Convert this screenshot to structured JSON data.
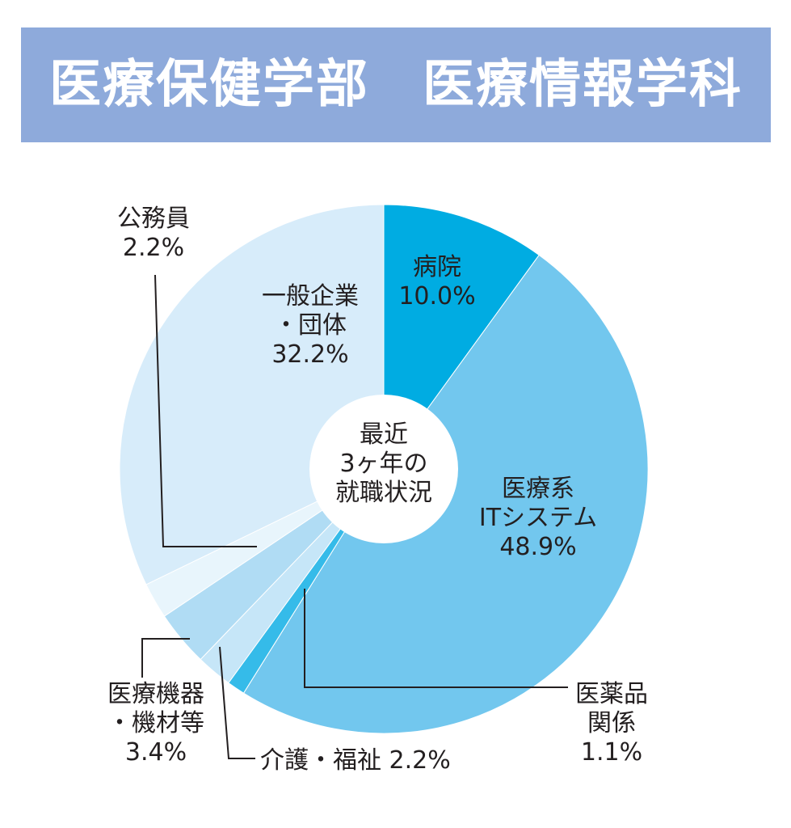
{
  "title": "医療保健学部　医療情報学科",
  "colors": {
    "banner": "#8eaadb",
    "hospital": "#00ace2",
    "medical_it": "#72c7ee",
    "pharma": "#35bbe9",
    "welfare": "#c6e6f8",
    "equipment": "#b0dcf4",
    "public": "#e8f5fc",
    "corporate": "#d7ecfa"
  },
  "chart_data": {
    "type": "pie",
    "center_label": [
      "最近",
      "3ヶ年の",
      "就職状況"
    ],
    "slices": [
      {
        "key": "hospital",
        "label_lines": [
          "病院",
          "10.0%"
        ],
        "value": 10.0
      },
      {
        "key": "medical_it",
        "label_lines": [
          "医療系",
          "ITシステム",
          "48.9%"
        ],
        "value": 48.9
      },
      {
        "key": "pharma",
        "label_lines": [
          "医薬品",
          "関係",
          "1.1%"
        ],
        "value": 1.1
      },
      {
        "key": "welfare",
        "label_lines": [
          "介護・福祉 2.2%"
        ],
        "value": 2.2
      },
      {
        "key": "equipment",
        "label_lines": [
          "医療機器",
          "・機材等",
          "3.4%"
        ],
        "value": 3.4
      },
      {
        "key": "public",
        "label_lines": [
          "公務員",
          "2.2%"
        ],
        "value": 2.2
      },
      {
        "key": "corporate",
        "label_lines": [
          "一般企業",
          "・団体",
          "32.2%"
        ],
        "value": 32.2
      }
    ]
  }
}
